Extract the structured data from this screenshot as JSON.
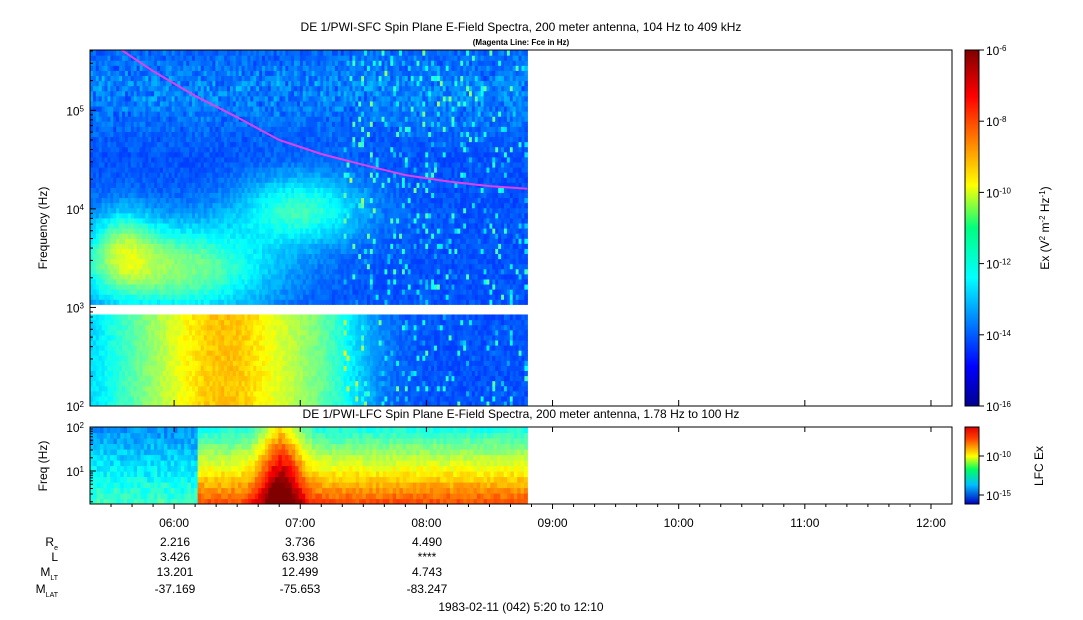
{
  "chart_data": [
    {
      "type": "heatmap",
      "title": "DE 1/PWI-SFC  Spin Plane E-Field Spectra, 200 meter antenna, 104 Hz to 409 kHz",
      "subtitle": "(Magenta Line: Fce in Hz)",
      "ylabel": "Frequency (Hz)",
      "y_scale": "log",
      "ylim": [
        100,
        409000
      ],
      "y_ticks": [
        {
          "value": 100,
          "base": "10",
          "exp": "2"
        },
        {
          "value": 1000,
          "base": "10",
          "exp": "3"
        },
        {
          "value": 10000,
          "base": "10",
          "exp": "4"
        },
        {
          "value": 100000,
          "base": "10",
          "exp": "5"
        }
      ],
      "colorbar": {
        "label_pre": "Ex (V",
        "label_sup1": "2",
        "label_mid": " m",
        "label_sup2": "-2",
        "label_mid2": " Hz",
        "label_sup3": "-1",
        "label_post": ")",
        "scale": "log",
        "range": [
          1e-16,
          1e-06
        ],
        "ticks": [
          {
            "value": 1e-06,
            "base": "10",
            "exp": "-6"
          },
          {
            "value": 1e-08,
            "base": "10",
            "exp": "-8"
          },
          {
            "value": 1e-10,
            "base": "10",
            "exp": "-10"
          },
          {
            "value": 1e-12,
            "base": "10",
            "exp": "-12"
          },
          {
            "value": 1e-14,
            "base": "10",
            "exp": "-14"
          },
          {
            "value": 1e-16,
            "base": "10",
            "exp": "-16"
          }
        ]
      },
      "data_end_time": "08:48",
      "fce_line": {
        "color": "#e040e8",
        "points": [
          [
            "05:35",
            409000
          ],
          [
            "05:50",
            250000
          ],
          [
            "06:10",
            140000
          ],
          [
            "06:30",
            85000
          ],
          [
            "06:50",
            50000
          ],
          [
            "07:10",
            36000
          ],
          [
            "07:30",
            28000
          ],
          [
            "07:50",
            22000
          ],
          [
            "08:10",
            19000
          ],
          [
            "08:30",
            17000
          ],
          [
            "08:48",
            16000
          ]
        ]
      }
    },
    {
      "type": "heatmap",
      "title": "DE 1/PWI-LFC  Spin Plane E-Field Spectra, 200 meter antenna, 1.78 Hz to 100 Hz",
      "ylabel": "Freq (Hz)",
      "y_scale": "log",
      "ylim": [
        1.78,
        100
      ],
      "y_ticks": [
        {
          "value": 10,
          "base": "10",
          "exp": "1"
        },
        {
          "value": 100,
          "base": "10",
          "exp": "2"
        }
      ],
      "colorbar": {
        "label": "LFC Ex",
        "scale": "log",
        "ticks": [
          {
            "value": 1e-10,
            "base": "10",
            "exp": "-10"
          },
          {
            "value": 1e-15,
            "base": "10",
            "exp": "-15"
          }
        ]
      },
      "data_end_time": "08:48"
    }
  ],
  "time_axis": {
    "start": "05:20",
    "end": "12:10",
    "tick_labels": [
      "06:00",
      "07:00",
      "08:00",
      "09:00",
      "10:00",
      "11:00",
      "12:00"
    ]
  },
  "ephemeris": {
    "rows": [
      {
        "label": "R",
        "sub": "e",
        "values": [
          "2.216",
          "3.736",
          "4.490"
        ]
      },
      {
        "label": "L",
        "sub": "",
        "values": [
          "3.426",
          "63.938",
          "****"
        ]
      },
      {
        "label": "M",
        "sub": "LT",
        "values": [
          "13.201",
          "12.499",
          "4.743"
        ]
      },
      {
        "label": "M",
        "sub": "LAT",
        "values": [
          "-37.169",
          "-75.653",
          "-83.247"
        ]
      }
    ]
  },
  "footer": "1983-02-11 (042) 5:20 to 12:10"
}
